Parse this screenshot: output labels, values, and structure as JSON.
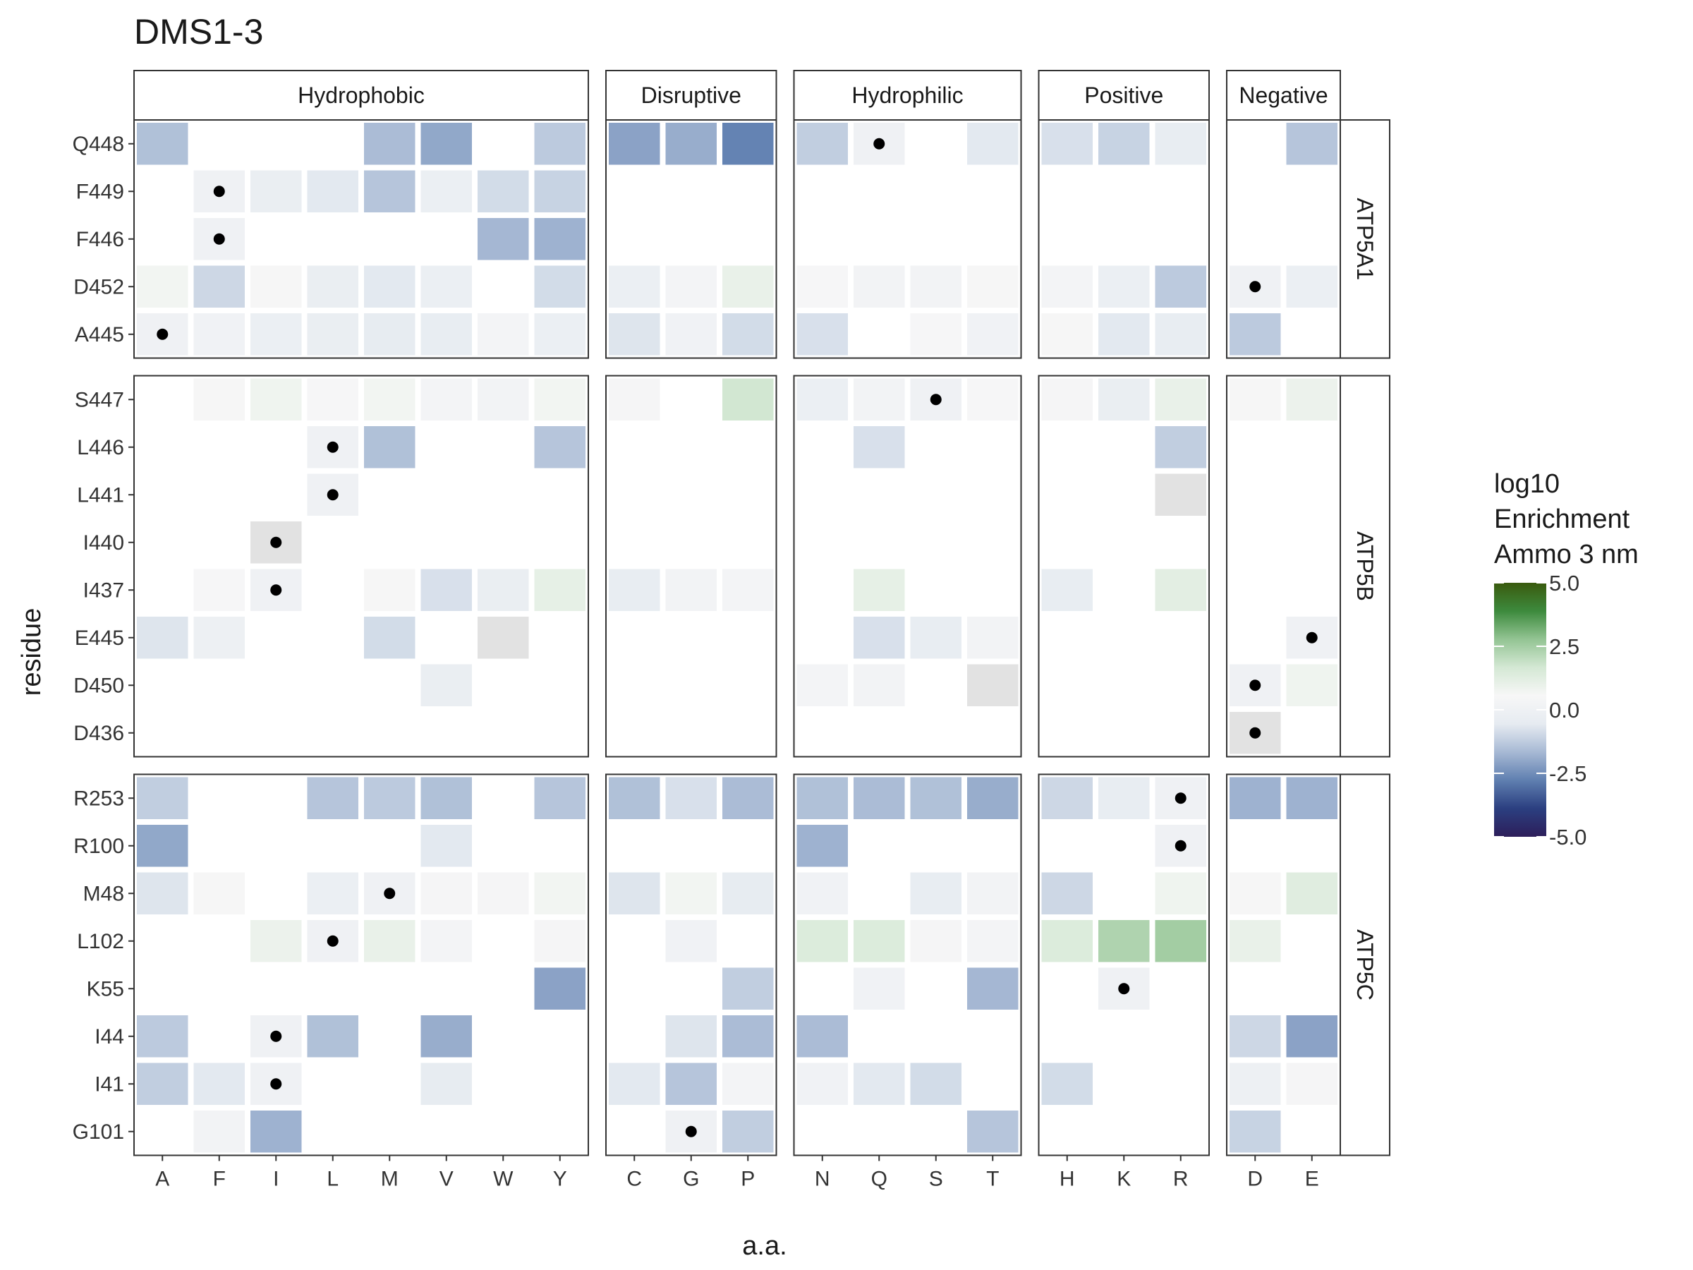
{
  "chart_data": {
    "type": "heatmap",
    "title": "DMS1-3",
    "xlabel": "a.a.",
    "ylabel": "residue",
    "legend": {
      "title_lines": [
        "log10",
        "Enrichment",
        "Ammo 3 nm"
      ],
      "range": [
        -5,
        5
      ],
      "ticks": [
        5.0,
        2.5,
        0.0,
        -2.5,
        -5.0
      ],
      "tick_labels": [
        "5.0",
        "2.5",
        "0.0",
        "-2.5",
        "-5.0"
      ],
      "placement": "right",
      "gradient": [
        "#2d1e5a",
        "#2b3f80",
        "#5f7fb0",
        "#a7b9d4",
        "#e6ebf1",
        "#f7f7f7",
        "#d4e8d4",
        "#93c493",
        "#3d8a3d",
        "#3a5a0e"
      ]
    },
    "wildtype_marker": "black dot marks the wild-type amino acid at each residue",
    "column_groups": [
      {
        "name": "Hydrophobic",
        "aas": [
          "A",
          "F",
          "I",
          "L",
          "M",
          "V",
          "W",
          "Y"
        ]
      },
      {
        "name": "Disruptive",
        "aas": [
          "C",
          "G",
          "P"
        ]
      },
      {
        "name": "Hydrophilic",
        "aas": [
          "N",
          "Q",
          "S",
          "T"
        ]
      },
      {
        "name": "Positive",
        "aas": [
          "H",
          "K",
          "R"
        ]
      },
      {
        "name": "Negative",
        "aas": [
          "D",
          "E"
        ]
      }
    ],
    "row_groups": [
      {
        "name": "ATP5A1",
        "residues": [
          {
            "label": "Q448",
            "wt": "Q",
            "values": {
              "A": -1.5,
              "M": -1.6,
              "V": -2.0,
              "Y": -1.3,
              "C": -2.1,
              "G": -1.9,
              "P": -2.7,
              "N": -1.2,
              "Q": 0.0,
              "T": -0.6,
              "H": -0.8,
              "K": -1.1,
              "R": -0.4,
              "E": -1.4
            }
          },
          {
            "label": "F449",
            "wt": "F",
            "values": {
              "F": 0.0,
              "I": -0.3,
              "L": -0.6,
              "M": -1.4,
              "V": -0.2,
              "W": -0.9,
              "Y": -1.1
            }
          },
          {
            "label": "F446",
            "wt": "F",
            "values": {
              "F": 0.0,
              "W": -1.7,
              "Y": -1.8
            }
          },
          {
            "label": "D452",
            "wt": "D",
            "values": {
              "A": 0.7,
              "F": -1.0,
              "I": 0.6,
              "L": -0.3,
              "M": -0.6,
              "V": -0.2,
              "Y": -0.9,
              "C": -0.2,
              "G": 0.3,
              "P": 1.0,
              "N": 0.5,
              "Q": 0.2,
              "S": 0.2,
              "T": 0.6,
              "H": 0.3,
              "K": -0.2,
              "R": -1.3,
              "D": 0.0,
              "E": -0.2
            }
          },
          {
            "label": "A445",
            "wt": "A",
            "values": {
              "A": 0.0,
              "F": 0.1,
              "I": -0.2,
              "L": -0.3,
              "M": -0.5,
              "V": -0.4,
              "W": 0.3,
              "Y": -0.2,
              "C": -0.7,
              "G": 0.1,
              "P": -0.9,
              "N": -0.8,
              "S": 0.5,
              "T": 0.1,
              "H": 0.6,
              "K": -0.6,
              "R": -0.4,
              "D": -1.3
            }
          }
        ]
      },
      {
        "name": "ATP5B",
        "residues": [
          {
            "label": "S447",
            "wt": "S",
            "values": {
              "F": 0.6,
              "I": 0.8,
              "L": 0.5,
              "M": 0.7,
              "V": 0.3,
              "W": 0.2,
              "Y": 0.7,
              "C": 0.4,
              "P": 1.7,
              "N": -0.2,
              "Q": 0.2,
              "S": 0.0,
              "T": 0.5,
              "H": 0.4,
              "K": -0.3,
              "R": 1.0,
              "D": 0.6,
              "E": 0.9
            }
          },
          {
            "label": "L446",
            "wt": "L",
            "values": {
              "L": 0.0,
              "M": -1.5,
              "Y": -1.4,
              "Q": -0.8,
              "R": -1.2
            }
          },
          {
            "label": "L441",
            "wt": "L",
            "values": {
              "L": 0.0,
              "R": null
            }
          },
          {
            "label": "I440",
            "wt": "I",
            "values": {
              "I": null
            }
          },
          {
            "label": "I437",
            "wt": "I",
            "values": {
              "F": 0.5,
              "I": 0.0,
              "M": 0.6,
              "V": -0.8,
              "W": -0.3,
              "Y": 1.1,
              "C": -0.4,
              "G": 0.2,
              "P": 0.3,
              "Q": 1.1,
              "H": -0.4,
              "R": 1.2
            }
          },
          {
            "label": "E445",
            "wt": "E",
            "values": {
              "A": -0.7,
              "F": -0.1,
              "M": -0.9,
              "W": null,
              "Q": -0.8,
              "S": -0.4,
              "T": 0.2,
              "E": 0.0
            }
          },
          {
            "label": "D450",
            "wt": "D",
            "values": {
              "V": -0.3,
              "N": 0.3,
              "Q": 0.2,
              "T": null,
              "D": 0.0,
              "E": 0.8
            }
          },
          {
            "label": "D436",
            "wt": "D",
            "values": {
              "D": null
            }
          }
        ]
      },
      {
        "name": "ATP5C",
        "residues": [
          {
            "label": "R253",
            "wt": "R",
            "values": {
              "A": -1.2,
              "L": -1.4,
              "M": -1.3,
              "V": -1.5,
              "Y": -1.4,
              "C": -1.5,
              "G": -0.8,
              "P": -1.6,
              "N": -1.5,
              "Q": -1.6,
              "S": -1.5,
              "T": -1.9,
              "H": -1.0,
              "K": -0.4,
              "R": 0.0,
              "D": -1.8,
              "E": -1.8
            }
          },
          {
            "label": "R100",
            "wt": "R",
            "values": {
              "A": -2.0,
              "V": -0.6,
              "N": -1.8,
              "R": 0.0
            }
          },
          {
            "label": "M48",
            "wt": "M",
            "values": {
              "A": -0.7,
              "F": 0.6,
              "L": -0.2,
              "M": 0.0,
              "V": 0.4,
              "W": 0.4,
              "Y": 0.7,
              "C": -0.7,
              "G": 0.7,
              "P": -0.5,
              "N": 0.1,
              "S": -0.4,
              "T": 0.2,
              "H": -1.0,
              "R": 0.8,
              "D": 0.6,
              "E": 1.3
            }
          },
          {
            "label": "L102",
            "wt": "L",
            "values": {
              "I": 0.9,
              "L": 0.0,
              "M": 1.0,
              "V": 0.3,
              "Y": 0.4,
              "G": 0.1,
              "N": 1.4,
              "Q": 1.4,
              "S": 0.4,
              "T": 0.3,
              "H": 1.4,
              "K": 2.3,
              "R": 2.5,
              "D": 1.0
            }
          },
          {
            "label": "K55",
            "wt": "K",
            "values": {
              "Y": -2.1,
              "P": -1.2,
              "Q": 0.1,
              "T": -1.7,
              "K": 0.0
            }
          },
          {
            "label": "I44",
            "wt": "I",
            "values": {
              "A": -1.3,
              "I": 0.0,
              "L": -1.5,
              "V": -1.9,
              "G": -0.7,
              "P": -1.6,
              "N": -1.6,
              "D": -1.0,
              "E": -2.1
            }
          },
          {
            "label": "I41",
            "wt": "I",
            "values": {
              "A": -1.2,
              "F": -0.6,
              "I": 0.0,
              "V": -0.5,
              "C": -0.6,
              "G": -1.4,
              "P": 0.3,
              "N": 0.1,
              "Q": -0.6,
              "S": -0.9,
              "H": -0.9,
              "D": -0.1,
              "E": 0.4
            }
          },
          {
            "label": "G101",
            "wt": "G",
            "values": {
              "F": 0.2,
              "I": -1.8,
              "G": 0.0,
              "P": -1.2,
              "T": -1.4,
              "D": -1.1
            }
          }
        ]
      }
    ]
  }
}
